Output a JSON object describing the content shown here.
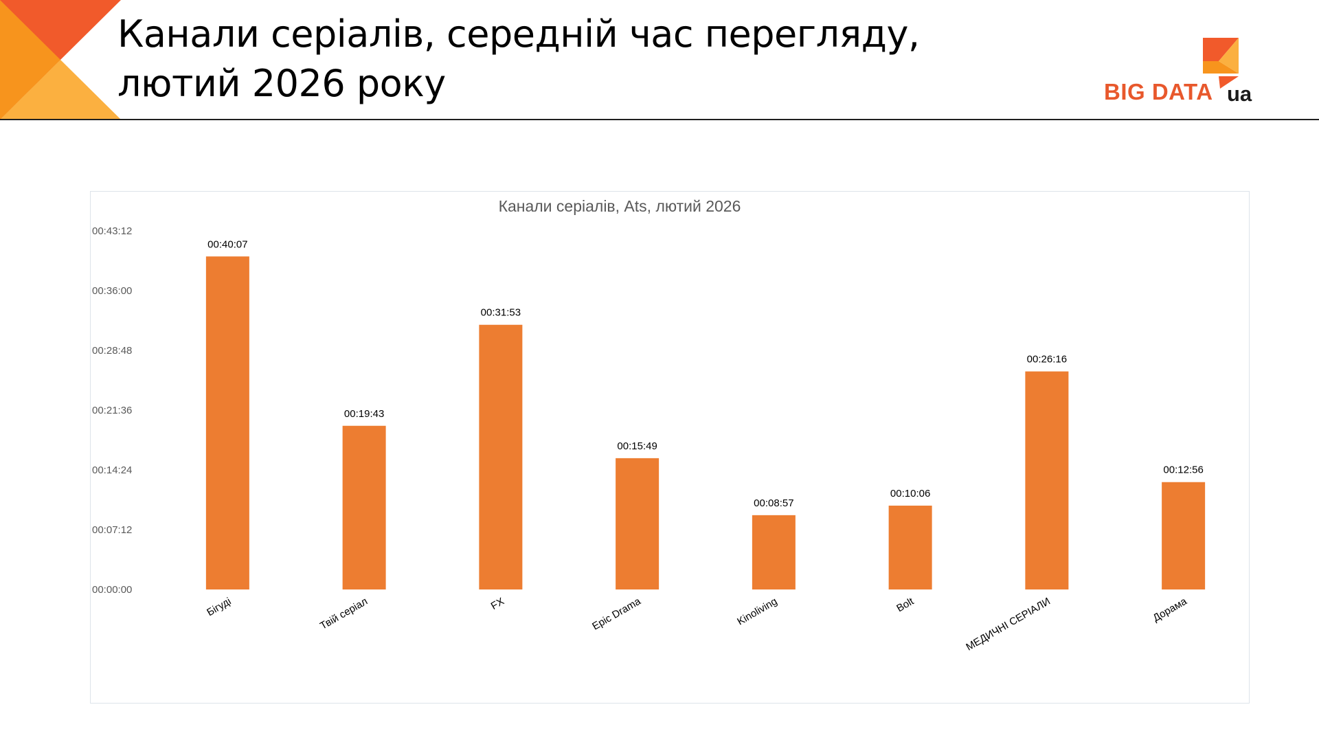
{
  "slide": {
    "title_line1": "Канали серіалів, середній час перегляду,",
    "title_line2": "лютий 2026 року"
  },
  "logo": {
    "text": "BIG DATA",
    "suffix": "ua",
    "brand_color": "#e8582c"
  },
  "colors": {
    "bar": "#ed7d31",
    "deco_dark": "#f15a2b",
    "deco_mid": "#f7941d",
    "deco_light": "#fbb040",
    "axis_text": "#595959"
  },
  "chart_data": {
    "type": "bar",
    "title": "Канали серіалів, Ats, лютий 2026",
    "xlabel": "",
    "ylabel": "",
    "ylim": [
      0,
      2592
    ],
    "grid": false,
    "legend": "none",
    "y_ticks": [
      {
        "label": "00:00:00",
        "value": 0
      },
      {
        "label": "00:07:12",
        "value": 432
      },
      {
        "label": "00:14:24",
        "value": 864
      },
      {
        "label": "00:21:36",
        "value": 1296
      },
      {
        "label": "00:28:48",
        "value": 1728
      },
      {
        "label": "00:36:00",
        "value": 2160
      },
      {
        "label": "00:43:12",
        "value": 2592
      }
    ],
    "categories": [
      "Бігуді",
      "Твій серіал",
      "FX",
      "Epic Drama",
      "Kinoliving",
      "Bolt",
      "МЕДИЧНІ СЕРІАЛИ",
      "Дорама"
    ],
    "values": [
      2407,
      1183,
      1913,
      949,
      537,
      606,
      1576,
      776
    ],
    "value_labels": [
      "00:40:07",
      "00:19:43",
      "00:31:53",
      "00:15:49",
      "00:08:57",
      "00:10:06",
      "00:26:16",
      "00:12:56"
    ]
  }
}
